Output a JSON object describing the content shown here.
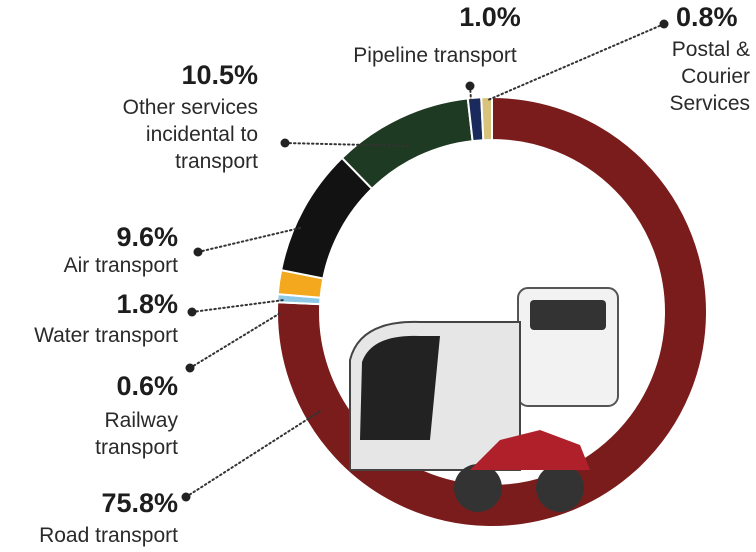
{
  "chart_data": {
    "type": "donut",
    "categories": [
      "Road transport",
      "Railway transport",
      "Water transport",
      "Air transport",
      "Other services incidental to transport",
      "Pipeline transport",
      "Postal & Courier Services"
    ],
    "values": [
      75.8,
      0.6,
      1.8,
      9.6,
      10.5,
      1.0,
      0.8
    ],
    "value_labels": [
      "75.8%",
      "0.6%",
      "1.8%",
      "9.6%",
      "10.5%",
      "1.0%",
      "0.8%"
    ],
    "colors": [
      "#7b1c1c",
      "#8ec9e8",
      "#f3a81e",
      "#121212",
      "#1f3a22",
      "#1b2a5c",
      "#d8c27c"
    ]
  }
}
